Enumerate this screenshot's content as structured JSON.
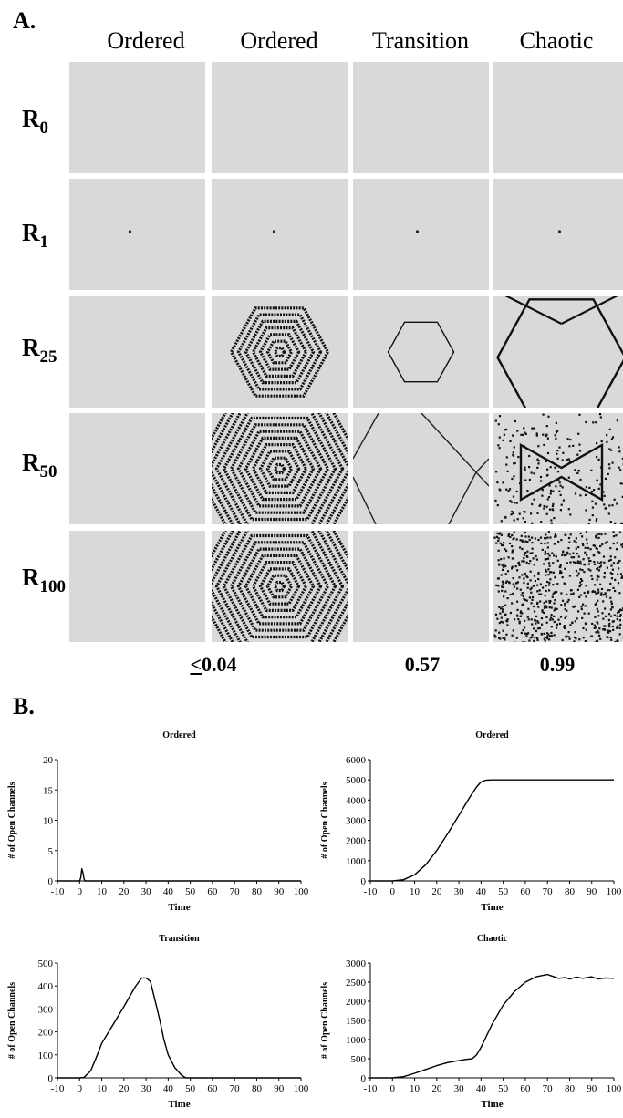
{
  "panel_a": {
    "label": "A.",
    "columns": [
      "Ordered",
      "Ordered",
      "Transition",
      "Chaotic"
    ],
    "rows": [
      {
        "base": "R",
        "sub": "0"
      },
      {
        "base": "R",
        "sub": "1"
      },
      {
        "base": "R",
        "sub": "25"
      },
      {
        "base": "R",
        "sub": "50"
      },
      {
        "base": "R",
        "sub": "100"
      }
    ],
    "lambda_values": [
      {
        "prefix": "<",
        "value": "0.04"
      },
      {
        "prefix": "",
        "value": "0.57"
      },
      {
        "prefix": "",
        "value": "0.99"
      }
    ],
    "pattern_names": [
      "blank",
      "single-dot",
      "concentric-hexagons",
      "single-hexagon",
      "crossing-lines",
      "noise-texture"
    ]
  },
  "panel_b": {
    "label": "B."
  },
  "chart_data": [
    {
      "type": "line",
      "title": "Ordered",
      "xlabel": "Time",
      "ylabel": "# of Open Channels",
      "xlim": [
        -10,
        100
      ],
      "ylim": [
        0,
        20
      ],
      "xticks": [
        -10,
        0,
        10,
        20,
        30,
        40,
        50,
        60,
        70,
        80,
        90,
        100
      ],
      "yticks": [
        0,
        5,
        10,
        15,
        20
      ],
      "x": [
        -10,
        0,
        0.5,
        1,
        1.5,
        2,
        2.5,
        3,
        10,
        20,
        30,
        40,
        50,
        60,
        70,
        80,
        90,
        100
      ],
      "y": [
        0,
        0,
        0.5,
        2,
        1.4,
        0.3,
        0,
        0,
        0,
        0,
        0,
        0,
        0,
        0,
        0,
        0,
        0,
        0
      ]
    },
    {
      "type": "line",
      "title": "Ordered",
      "xlabel": "Time",
      "ylabel": "# of Open Channels",
      "xlim": [
        -10,
        100
      ],
      "ylim": [
        0,
        6000
      ],
      "xticks": [
        -10,
        0,
        10,
        20,
        30,
        40,
        50,
        60,
        70,
        80,
        90,
        100
      ],
      "yticks": [
        0,
        1000,
        2000,
        3000,
        4000,
        5000,
        6000
      ],
      "x": [
        -10,
        0,
        5,
        10,
        15,
        20,
        25,
        30,
        35,
        38,
        40,
        42,
        45,
        50,
        60,
        70,
        80,
        90,
        100
      ],
      "y": [
        0,
        0,
        60,
        300,
        800,
        1500,
        2350,
        3250,
        4150,
        4650,
        4900,
        4980,
        5000,
        5000,
        5000,
        5000,
        5000,
        5000,
        5000
      ]
    },
    {
      "type": "line",
      "title": "Transition",
      "xlabel": "Time",
      "ylabel": "# of Open Channels",
      "xlim": [
        -10,
        100
      ],
      "ylim": [
        0,
        500
      ],
      "xticks": [
        -10,
        0,
        10,
        20,
        30,
        40,
        50,
        60,
        70,
        80,
        90,
        100
      ],
      "yticks": [
        0,
        100,
        200,
        300,
        400,
        500
      ],
      "x": [
        -10,
        0,
        2,
        5,
        8,
        10,
        15,
        20,
        25,
        28,
        30,
        32,
        34,
        36,
        38,
        40,
        43,
        46,
        48,
        50,
        60,
        70,
        80,
        90,
        100
      ],
      "y": [
        0,
        0,
        2,
        30,
        100,
        150,
        230,
        310,
        395,
        435,
        435,
        420,
        340,
        260,
        170,
        100,
        45,
        12,
        0,
        0,
        0,
        0,
        0,
        0,
        0
      ]
    },
    {
      "type": "line",
      "title": "Chaotic",
      "xlabel": "Time",
      "ylabel": "# of Open Channels",
      "xlim": [
        -10,
        100
      ],
      "ylim": [
        0,
        3000
      ],
      "xticks": [
        -10,
        0,
        10,
        20,
        30,
        40,
        50,
        60,
        70,
        80,
        90,
        100
      ],
      "yticks": [
        0,
        500,
        1000,
        1500,
        2000,
        2500,
        3000
      ],
      "x": [
        -10,
        0,
        5,
        10,
        15,
        20,
        25,
        30,
        33,
        36,
        38,
        40,
        45,
        50,
        55,
        60,
        65,
        70,
        72,
        75,
        78,
        80,
        83,
        86,
        90,
        93,
        96,
        100
      ],
      "y": [
        0,
        0,
        30,
        120,
        220,
        320,
        400,
        450,
        480,
        500,
        600,
        800,
        1400,
        1900,
        2250,
        2500,
        2640,
        2700,
        2660,
        2600,
        2620,
        2580,
        2630,
        2600,
        2640,
        2580,
        2610,
        2600
      ]
    }
  ]
}
